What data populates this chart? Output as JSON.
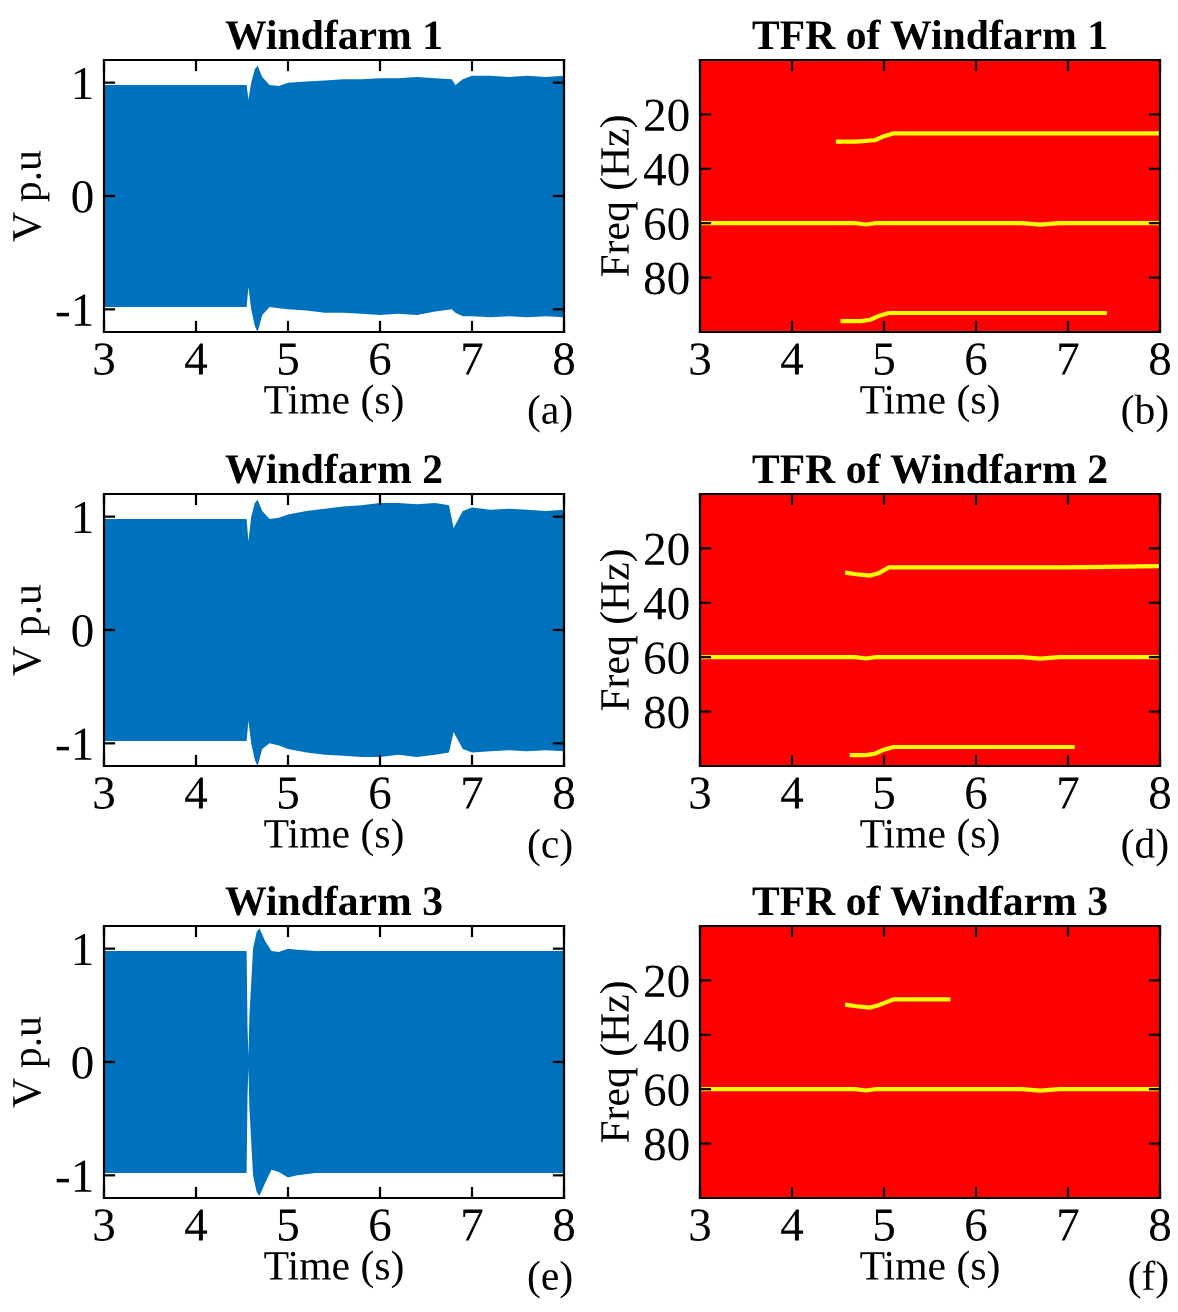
{
  "chart_data": [
    {
      "type": "area",
      "title": "Windfarm 1",
      "xlabel": "Time (s)",
      "ylabel": "V p.u",
      "annotations": [
        "(a)"
      ],
      "xlim": [
        3,
        8
      ],
      "xticks": [
        3,
        4,
        5,
        6,
        7,
        8
      ],
      "ylim": [
        -1.2,
        1.2
      ],
      "yticks": [
        -1,
        0,
        1
      ],
      "series": [
        {
          "color": "#0072bd",
          "x": [
            3,
            4.55,
            4.57,
            4.6,
            4.64,
            4.67,
            4.72,
            4.8,
            4.9,
            5.0,
            5.2,
            5.4,
            5.6,
            5.8,
            6.0,
            6.2,
            6.4,
            6.6,
            6.78,
            6.82,
            6.9,
            7.0,
            7.2,
            7.4,
            7.6,
            7.8,
            8.0
          ],
          "values": [
            0.98,
            0.98,
            0.85,
            1.0,
            1.12,
            1.15,
            1.05,
            0.98,
            0.97,
            1.0,
            1.01,
            1.02,
            1.03,
            1.03,
            1.04,
            1.04,
            1.05,
            1.04,
            1.03,
            0.98,
            1.03,
            1.06,
            1.06,
            1.05,
            1.06,
            1.05,
            1.06
          ]
        },
        {
          "color": "#0072bd",
          "x": [
            3,
            4.55,
            4.57,
            4.6,
            4.64,
            4.67,
            4.72,
            4.8,
            4.9,
            5.0,
            5.2,
            5.4,
            5.6,
            5.8,
            6.0,
            6.2,
            6.4,
            6.6,
            6.78,
            6.82,
            6.9,
            7.0,
            7.2,
            7.4,
            7.6,
            7.8,
            8.0
          ],
          "values": [
            -0.98,
            -0.98,
            -0.8,
            -1.0,
            -1.15,
            -1.2,
            -1.05,
            -0.98,
            -0.99,
            -1.0,
            -1.01,
            -1.03,
            -1.03,
            -1.04,
            -1.05,
            -1.04,
            -1.05,
            -1.02,
            -1.0,
            -1.03,
            -1.06,
            -1.06,
            -1.07,
            -1.06,
            -1.07,
            -1.06,
            -1.07
          ]
        }
      ]
    },
    {
      "type": "line",
      "title": "TFR of Windfarm 1",
      "xlabel": "Time (s)",
      "ylabel": "Freq (Hz)",
      "annotations": [
        "(b)"
      ],
      "xlim": [
        3,
        8
      ],
      "xticks": [
        3,
        4,
        5,
        6,
        7,
        8
      ],
      "ylim": [
        100,
        0
      ],
      "yticks": [
        20,
        40,
        60,
        80
      ],
      "bands": [
        {
          "axis": "x",
          "from": 3,
          "to": 8,
          "color": "#ff0000"
        }
      ],
      "series": [
        {
          "color": "#ffff00",
          "x": [
            4.5,
            4.7,
            4.9,
            5.0,
            5.1,
            6.0,
            7.0,
            8.0
          ],
          "values": [
            30,
            30,
            29.5,
            28,
            27,
            27,
            27,
            27
          ]
        },
        {
          "color": "#ffff00",
          "x": [
            3,
            4.0,
            4.7,
            4.8,
            4.9,
            5.5,
            6.5,
            6.7,
            6.9,
            7.5,
            8.0
          ],
          "values": [
            60,
            60,
            60,
            60.5,
            60,
            60,
            60,
            60.5,
            60,
            60,
            60
          ]
        },
        {
          "color": "#ffff00",
          "x": [
            4.55,
            4.75,
            4.85,
            4.95,
            5.05,
            6.0,
            7.0,
            7.4
          ],
          "values": [
            96,
            96,
            95.5,
            94,
            93,
            93,
            93,
            93
          ]
        }
      ]
    },
    {
      "type": "area",
      "title": "Windfarm 2",
      "xlabel": "Time (s)",
      "ylabel": "V p.u",
      "annotations": [
        "(c)"
      ],
      "xlim": [
        3,
        8
      ],
      "xticks": [
        3,
        4,
        5,
        6,
        7,
        8
      ],
      "ylim": [
        -1.2,
        1.2
      ],
      "yticks": [
        -1,
        0,
        1
      ],
      "series": [
        {
          "color": "#0072bd",
          "x": [
            3,
            4.55,
            4.57,
            4.6,
            4.64,
            4.67,
            4.72,
            4.8,
            4.9,
            5.0,
            5.2,
            5.4,
            5.6,
            5.8,
            6.0,
            6.2,
            6.4,
            6.6,
            6.75,
            6.8,
            6.9,
            7.0,
            7.2,
            7.4,
            7.6,
            7.8,
            8.0
          ],
          "values": [
            0.98,
            0.98,
            0.78,
            1.0,
            1.12,
            1.15,
            1.05,
            0.98,
            0.99,
            1.02,
            1.05,
            1.07,
            1.09,
            1.1,
            1.12,
            1.12,
            1.11,
            1.12,
            1.1,
            0.9,
            1.05,
            1.08,
            1.06,
            1.07,
            1.06,
            1.05,
            1.06
          ]
        },
        {
          "color": "#0072bd",
          "x": [
            3,
            4.55,
            4.57,
            4.6,
            4.64,
            4.67,
            4.72,
            4.8,
            4.9,
            5.0,
            5.2,
            5.4,
            5.6,
            5.8,
            6.0,
            6.2,
            6.4,
            6.6,
            6.75,
            6.8,
            6.9,
            7.0,
            7.2,
            7.4,
            7.6,
            7.8,
            8.0
          ],
          "values": [
            -0.98,
            -0.98,
            -0.8,
            -1.0,
            -1.15,
            -1.2,
            -1.05,
            -1.0,
            -1.02,
            -1.05,
            -1.08,
            -1.1,
            -1.11,
            -1.12,
            -1.12,
            -1.1,
            -1.12,
            -1.1,
            -1.08,
            -0.9,
            -1.05,
            -1.08,
            -1.07,
            -1.06,
            -1.07,
            -1.06,
            -1.07
          ]
        }
      ]
    },
    {
      "type": "line",
      "title": "TFR of Windfarm 2",
      "xlabel": "Time (s)",
      "ylabel": "Freq (Hz)",
      "annotations": [
        "(d)"
      ],
      "xlim": [
        3,
        8
      ],
      "xticks": [
        3,
        4,
        5,
        6,
        7,
        8
      ],
      "ylim": [
        100,
        0
      ],
      "yticks": [
        20,
        40,
        60,
        80
      ],
      "bands": [
        {
          "axis": "x",
          "from": 3,
          "to": 8,
          "color": "#ff0000"
        }
      ],
      "series": [
        {
          "color": "#ffff00",
          "x": [
            4.6,
            4.7,
            4.85,
            4.95,
            5.05,
            6.0,
            7.0,
            8.0
          ],
          "values": [
            29,
            29.5,
            30,
            29,
            27,
            27,
            27,
            26.5
          ]
        },
        {
          "color": "#ffff00",
          "x": [
            3,
            4.0,
            4.7,
            4.8,
            4.9,
            5.5,
            6.5,
            6.7,
            6.9,
            7.5,
            8.0
          ],
          "values": [
            60,
            60,
            60,
            60.5,
            60,
            60,
            60,
            60.5,
            60,
            60,
            60
          ]
        },
        {
          "color": "#ffff00",
          "x": [
            4.65,
            4.8,
            4.9,
            5.0,
            5.1,
            6.0,
            6.8,
            7.05
          ],
          "values": [
            96,
            96,
            95.5,
            94,
            93,
            93,
            93,
            93
          ]
        }
      ]
    },
    {
      "type": "area",
      "title": "Windfarm 3",
      "xlabel": "Time (s)",
      "ylabel": "V p.u",
      "annotations": [
        "(e)"
      ],
      "xlim": [
        3,
        8
      ],
      "xticks": [
        3,
        4,
        5,
        6,
        7,
        8
      ],
      "ylim": [
        -1.2,
        1.2
      ],
      "yticks": [
        -1,
        0,
        1
      ],
      "series": [
        {
          "color": "#0072bd",
          "x": [
            3,
            4.55,
            4.56,
            4.57,
            4.58,
            4.62,
            4.66,
            4.69,
            4.75,
            4.82,
            4.9,
            5.0,
            5.1,
            5.3,
            6.0,
            7.0,
            8.0
          ],
          "values": [
            0.98,
            0.98,
            0.3,
            0.05,
            0.4,
            1.0,
            1.15,
            1.18,
            1.07,
            0.98,
            0.97,
            1.0,
            0.99,
            0.98,
            0.98,
            0.98,
            0.98
          ]
        },
        {
          "color": "#0072bd",
          "x": [
            3,
            4.55,
            4.56,
            4.57,
            4.58,
            4.62,
            4.66,
            4.69,
            4.75,
            4.82,
            4.9,
            5.0,
            5.1,
            5.3,
            6.0,
            7.0,
            8.0
          ],
          "values": [
            -0.98,
            -0.98,
            -0.3,
            -0.05,
            -0.4,
            -1.0,
            -1.15,
            -1.18,
            -1.07,
            -0.95,
            -0.97,
            -1.02,
            -1.0,
            -0.98,
            -0.98,
            -0.98,
            -0.98
          ]
        }
      ]
    },
    {
      "type": "line",
      "title": "TFR of Windfarm 3",
      "xlabel": "Time (s)",
      "ylabel": "Freq (Hz)",
      "annotations": [
        "(f)"
      ],
      "xlim": [
        3,
        8
      ],
      "xticks": [
        3,
        4,
        5,
        6,
        7,
        8
      ],
      "ylim": [
        100,
        0
      ],
      "yticks": [
        20,
        40,
        60,
        80
      ],
      "bands": [
        {
          "axis": "x",
          "from": 3,
          "to": 8,
          "color": "#ff0000"
        }
      ],
      "series": [
        {
          "color": "#ffff00",
          "x": [
            4.6,
            4.7,
            4.85,
            4.95,
            5.1,
            5.4,
            5.7
          ],
          "values": [
            29,
            29.5,
            30,
            29,
            27,
            27,
            27
          ]
        },
        {
          "color": "#ffff00",
          "x": [
            3,
            4.0,
            4.7,
            4.8,
            4.9,
            5.5,
            6.5,
            6.7,
            6.9,
            7.5,
            8.0
          ],
          "values": [
            60,
            60,
            60,
            60.5,
            60,
            60,
            60,
            60.5,
            60,
            60,
            60
          ]
        }
      ]
    }
  ]
}
